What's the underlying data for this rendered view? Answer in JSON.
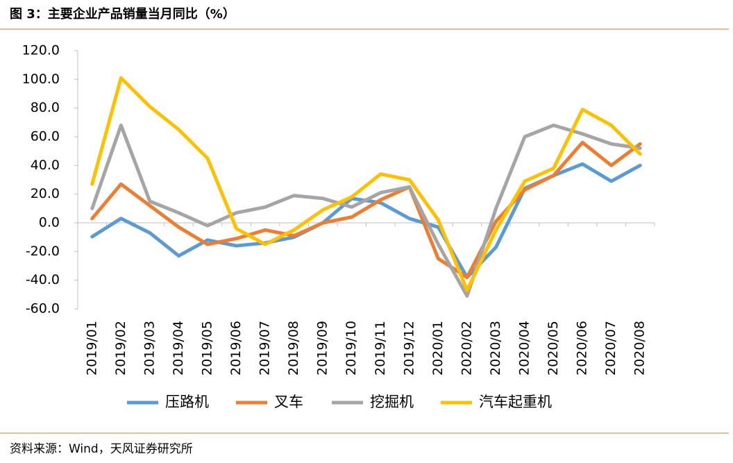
{
  "chart_data": {
    "type": "line",
    "title": "图 3：主要企业产品销量当月同比（%）",
    "source": "资料来源：Wind，天风证券研究所",
    "categories": [
      "2019/01",
      "2019/02",
      "2019/03",
      "2019/04",
      "2019/05",
      "2019/06",
      "2019/07",
      "2019/08",
      "2019/09",
      "2019/10",
      "2019/11",
      "2019/12",
      "2020/01",
      "2020/02",
      "2020/03",
      "2020/04",
      "2020/05",
      "2020/06",
      "2020/07",
      "2020/08"
    ],
    "series": [
      {
        "name": "压路机",
        "color": "#5b9bd5",
        "values": [
          -9.7,
          3,
          -7,
          -23,
          -12,
          -16,
          -14,
          -10,
          0,
          17,
          14,
          3,
          -3,
          -38,
          -17,
          24,
          33,
          41,
          29,
          40
        ]
      },
      {
        "name": "叉车",
        "color": "#ed7d31",
        "values": [
          3,
          27,
          12,
          -3,
          -15,
          -11,
          -5,
          -9,
          0,
          4,
          16,
          25,
          -25,
          -38,
          1,
          23,
          33,
          56,
          40,
          55
        ]
      },
      {
        "name": "挖掘机",
        "color": "#a5a5a5",
        "values": [
          10,
          68,
          15,
          7,
          -2,
          7,
          11,
          19,
          17,
          11,
          21,
          25,
          -15,
          -51,
          10,
          60,
          68,
          62,
          55,
          52
        ]
      },
      {
        "name": "汽车起重机",
        "color": "#ffc000",
        "values": [
          27,
          101,
          81,
          65,
          45,
          -4,
          -15,
          -5,
          9,
          18,
          34,
          30,
          2,
          -47,
          -5,
          29,
          38,
          79,
          68,
          48
        ]
      }
    ],
    "ylim": [
      -60,
      120
    ],
    "yticks": [
      {
        "value": -60,
        "label": "-60.0"
      },
      {
        "value": -40,
        "label": "-40.0"
      },
      {
        "value": -20,
        "label": "-20.0"
      },
      {
        "value": 0,
        "label": "0.0"
      },
      {
        "value": 20,
        "label": "20.0"
      },
      {
        "value": 40,
        "label": "40.0"
      },
      {
        "value": 60,
        "label": "60.0"
      },
      {
        "value": 80,
        "label": "80.0"
      },
      {
        "value": 100,
        "label": "100.0"
      },
      {
        "value": 120,
        "label": "120.0"
      }
    ],
    "grid": false
  }
}
